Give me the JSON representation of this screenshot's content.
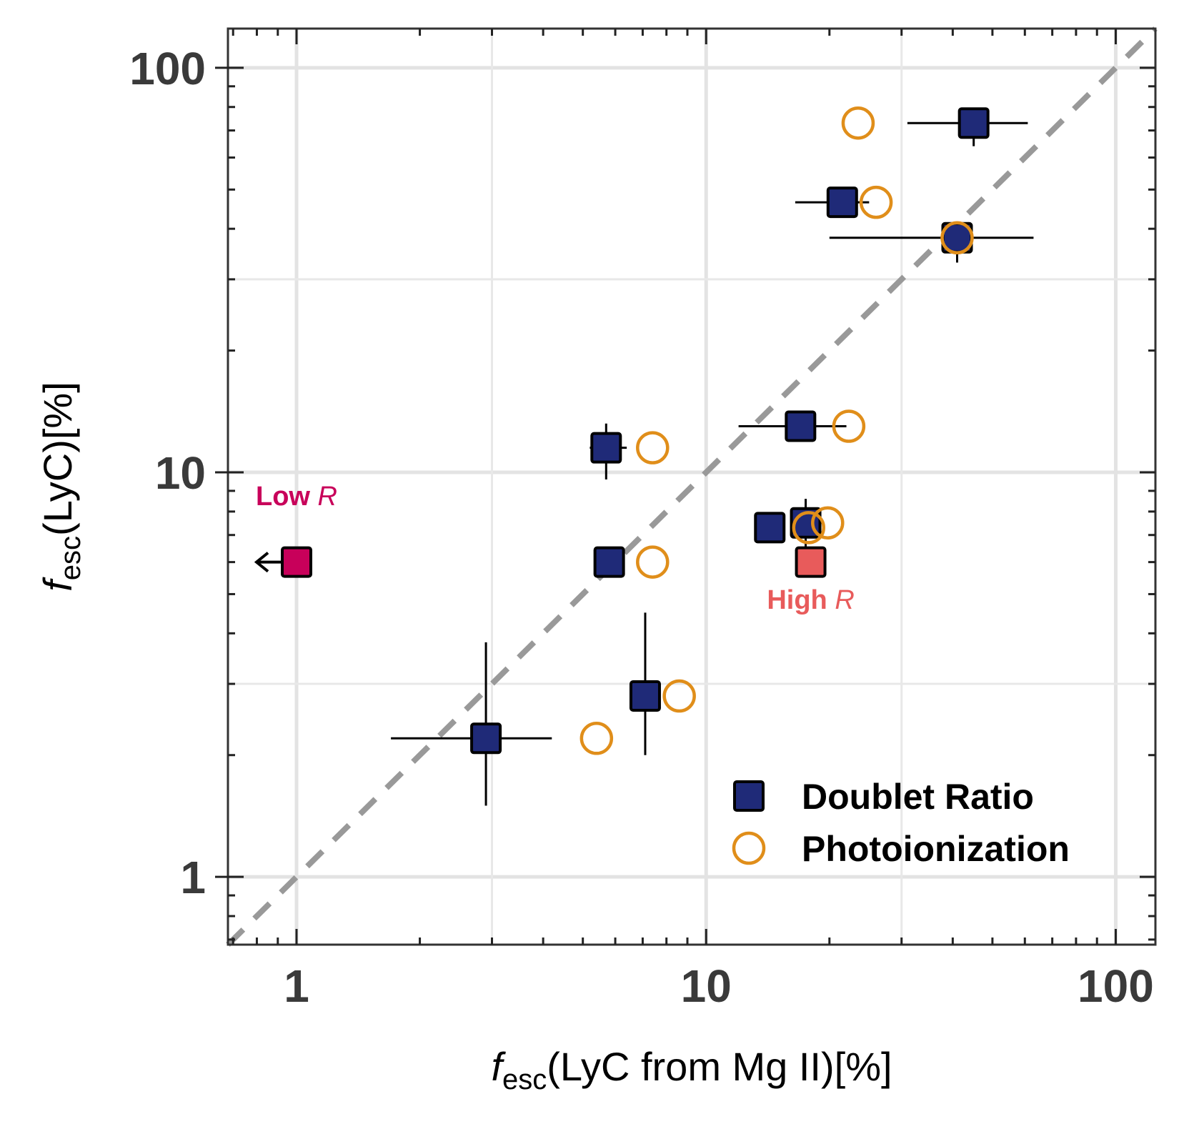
{
  "chart_data": {
    "type": "scatter",
    "x_scale": "log",
    "y_scale": "log",
    "xlim": [
      0.68,
      125
    ],
    "ylim": [
      0.68,
      125
    ],
    "xlabel": {
      "symbol": "f",
      "subscript": "esc",
      "text": "(LyC from Mg II)[%]"
    },
    "ylabel": {
      "symbol": "f",
      "subscript": "esc",
      "text": "(LyC)[%]"
    },
    "x_ticks": [
      1,
      10,
      100
    ],
    "x_tick_labels": [
      "1",
      "10",
      "100"
    ],
    "y_ticks": [
      1,
      10,
      100
    ],
    "y_tick_labels": [
      "1",
      "10",
      "100"
    ],
    "grid": true,
    "reference_line": {
      "label": "1:1",
      "style": "dashed",
      "color": "#999999"
    },
    "legend_position": "bottom-right",
    "series": [
      {
        "name": "Doublet Ratio",
        "marker": "square",
        "color": "#1f2a78",
        "points": [
          {
            "x": 2.9,
            "y": 2.2,
            "xerr": [
              1.7,
              4.2
            ],
            "yerr": [
              1.5,
              3.8
            ]
          },
          {
            "x": 5.7,
            "y": 11.5,
            "xerr": [
              5.2,
              6.4
            ],
            "yerr": [
              9.6,
              13.2
            ]
          },
          {
            "x": 5.8,
            "y": 6.0,
            "xerr": [
              5.6,
              6.0
            ],
            "yerr": [
              5.6,
              6.1
            ]
          },
          {
            "x": 7.1,
            "y": 2.8,
            "xerr": [
              6.9,
              7.2
            ],
            "yerr": [
              2.0,
              4.5
            ]
          },
          {
            "x": 14.3,
            "y": 7.3,
            "xerr": [
              14.1,
              14.6
            ],
            "yerr": [
              7.0,
              7.6
            ]
          },
          {
            "x": 17.0,
            "y": 13.0,
            "xerr": [
              12.0,
              22.0
            ],
            "yerr": [
              12.8,
              13.3
            ]
          },
          {
            "x": 17.5,
            "y": 7.5,
            "xerr": [
              17.2,
              17.8
            ],
            "yerr": [
              6.5,
              8.6
            ]
          },
          {
            "x": 21.5,
            "y": 46.5,
            "xerr": [
              16.5,
              25.0
            ],
            "yerr": [
              46.0,
              47.0
            ]
          },
          {
            "x": 41.0,
            "y": 38.0,
            "xerr": [
              20.0,
              63.0
            ],
            "yerr": [
              33.0,
              41.0
            ]
          },
          {
            "x": 45.0,
            "y": 73.0,
            "xerr": [
              31.0,
              61.0
            ],
            "yerr": [
              64.0,
              79.0
            ]
          }
        ]
      },
      {
        "name": "Photoionization",
        "marker": "open-circle",
        "color": "#e08e1a",
        "points": [
          {
            "x": 5.4,
            "y": 2.2
          },
          {
            "x": 7.4,
            "y": 11.5
          },
          {
            "x": 7.4,
            "y": 6.0
          },
          {
            "x": 8.6,
            "y": 2.8
          },
          {
            "x": 17.8,
            "y": 7.3
          },
          {
            "x": 19.8,
            "y": 7.5
          },
          {
            "x": 22.3,
            "y": 13.0
          },
          {
            "x": 23.5,
            "y": 73.0
          },
          {
            "x": 26.0,
            "y": 46.5
          },
          {
            "x": 41.0,
            "y": 38.0
          }
        ]
      }
    ],
    "special_points": [
      {
        "name": "Low R",
        "x": 1.0,
        "y": 6.0,
        "color": "#c8005a",
        "upper_limit_x": true
      },
      {
        "name": "High R",
        "x": 18.0,
        "y": 6.0,
        "color": "#e85b5b",
        "upper_limit_x": false
      }
    ],
    "annotations": [
      {
        "text": "Low",
        "italic_part": "R",
        "color": "#c8005a",
        "x": 1.0,
        "y": 8.3,
        "anchor": "middle"
      },
      {
        "text": "High",
        "italic_part": "R",
        "color": "#e85b5b",
        "x": 18.0,
        "y": 4.6,
        "anchor": "middle"
      }
    ],
    "legend": [
      {
        "label": "Doublet Ratio",
        "marker": "square"
      },
      {
        "label": "Photoionization",
        "marker": "open-circle"
      }
    ]
  }
}
